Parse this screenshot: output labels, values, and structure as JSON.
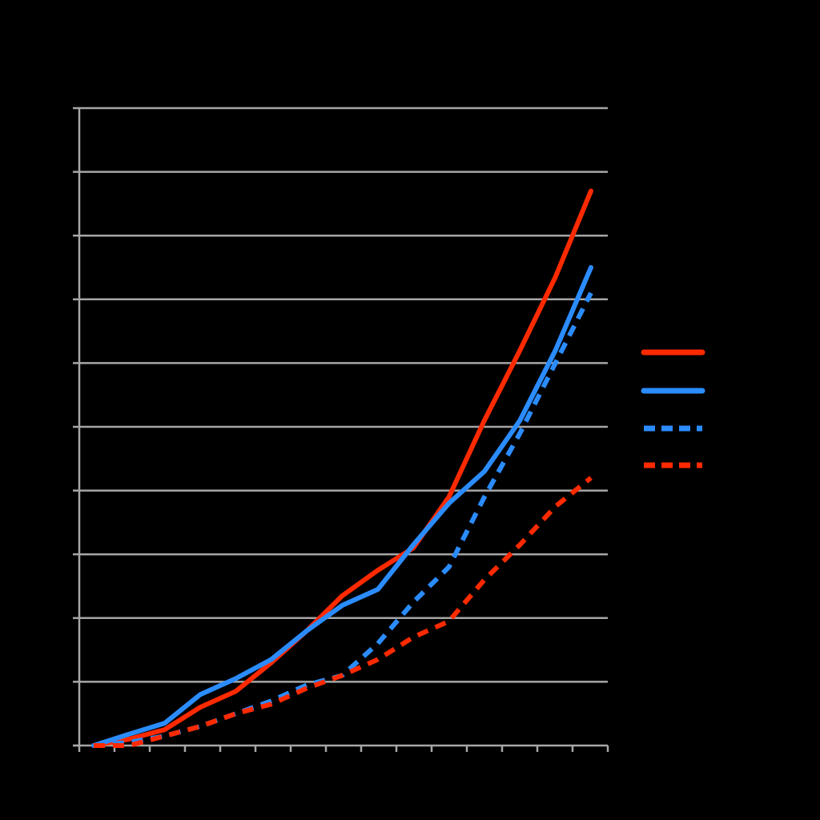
{
  "chart_data": {
    "type": "line",
    "title": "",
    "xlabel": "",
    "ylabel": "",
    "ylim": [
      0,
      10
    ],
    "grid": true,
    "legend_position": "right",
    "background": "#000000",
    "gridline_color": "#a6a6a6",
    "x": [
      0,
      1,
      2,
      3,
      4,
      5,
      6,
      7,
      8,
      9,
      10,
      11,
      12,
      13,
      14
    ],
    "series": [
      {
        "style": "solid",
        "color": "#ff2a00",
        "values": [
          0,
          0.1,
          0.25,
          0.6,
          0.85,
          1.3,
          1.8,
          2.35,
          2.75,
          3.1,
          3.9,
          5.1,
          6.2,
          7.35,
          8.7
        ]
      },
      {
        "style": "solid",
        "color": "#2b8cff",
        "values": [
          0,
          0.18,
          0.35,
          0.8,
          1.05,
          1.35,
          1.8,
          2.2,
          2.45,
          3.15,
          3.8,
          4.3,
          5.1,
          6.2,
          7.5
        ]
      },
      {
        "style": "dashed",
        "color": "#2b8cff",
        "values": [
          0,
          0.05,
          0.15,
          0.3,
          0.5,
          0.7,
          0.95,
          1.1,
          1.6,
          2.25,
          2.8,
          3.9,
          4.9,
          6.0,
          7.1
        ]
      },
      {
        "style": "dashed",
        "color": "#ff2a00",
        "values": [
          0,
          0,
          0.15,
          0.3,
          0.5,
          0.65,
          0.9,
          1.1,
          1.35,
          1.7,
          1.95,
          2.6,
          3.15,
          3.75,
          4.2
        ]
      }
    ]
  }
}
